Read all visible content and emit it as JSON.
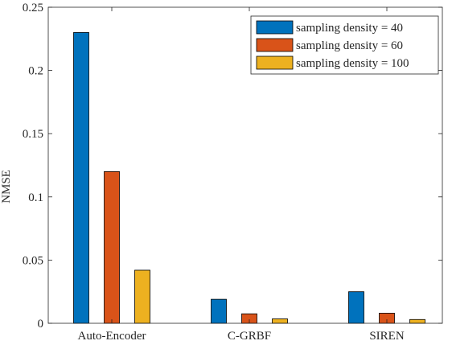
{
  "chart_data": {
    "type": "bar",
    "categories": [
      "Auto-Encoder",
      "C-GRBF",
      "SIREN"
    ],
    "series": [
      {
        "name": "sampling density = 40",
        "color": "#0072BD",
        "values": [
          0.23,
          0.019,
          0.025
        ]
      },
      {
        "name": "sampling density = 60",
        "color": "#D95319",
        "values": [
          0.12,
          0.0075,
          0.008
        ]
      },
      {
        "name": "sampling density = 100",
        "color": "#EDB120",
        "values": [
          0.042,
          0.0035,
          0.003
        ]
      }
    ],
    "ylabel": "NMSE",
    "xlabel": "",
    "title": "",
    "ylim": [
      0,
      0.25
    ],
    "yticks": [
      0,
      0.05,
      0.1,
      0.15,
      0.2,
      0.25
    ],
    "ytick_labels": [
      "0",
      "0.05",
      "0.1",
      "0.15",
      "0.2",
      "0.25"
    ],
    "grid": false,
    "legend_position": "top-right"
  }
}
